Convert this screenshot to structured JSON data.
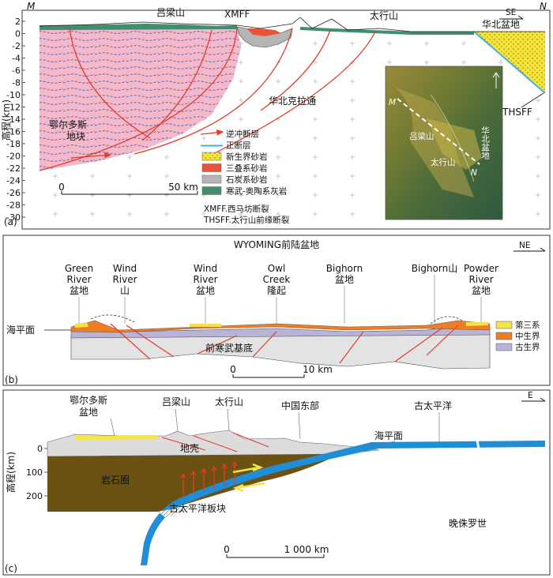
{
  "panel_a": {
    "letter": "(a)",
    "corner_left": "M",
    "corner_right": "N",
    "direction": "SE",
    "y_axis_label": "高程(km)",
    "y_ticks": [
      "2",
      "0",
      "-2",
      "-4",
      "-6",
      "-8",
      "-10",
      "-12",
      "-14",
      "-16",
      "-18",
      "-20",
      "-22",
      "-24",
      "-26",
      "-28",
      "-30"
    ],
    "labels": {
      "lvliang": "吕梁山",
      "xmff": "XMFF",
      "taihang": "太行山",
      "huabei_basin": "华北盆地",
      "craton": "华北克拉通",
      "ordos_1": "鄂尔多斯",
      "ordos_2": "地块",
      "thsff": "THSFF"
    },
    "scale": {
      "zero": "0",
      "end": "50 km"
    },
    "inset": {
      "m": "M",
      "n": "N",
      "lvliang": "吕梁山",
      "taihang": "太行山",
      "basin": "华北盆地"
    },
    "legend": [
      {
        "label": "逆冲断层",
        "color": "#e23b2a",
        "kind": "arrow-line"
      },
      {
        "label": "正断层",
        "color": "#46aee8",
        "kind": "double-line"
      },
      {
        "label": "新生界砂岩",
        "color": "#f5e43a",
        "kind": "dots"
      },
      {
        "label": "三叠系砂岩",
        "color": "#e5553a",
        "kind": "fill"
      },
      {
        "label": "石炭系砂岩",
        "color": "#b5b5b5",
        "kind": "fill"
      },
      {
        "label": "寒武-奥陶系灰岩",
        "color": "#3f8f6f",
        "kind": "fill"
      }
    ],
    "notes": [
      "XMFF.西马坊断裂",
      "THSFF.太行山前缘断裂"
    ]
  },
  "panel_b": {
    "letter": "(b)",
    "title": "WYOMING前陆盆地",
    "direction": "NE",
    "sea_level": "海平面",
    "basement": "前寒武基底",
    "features": [
      {
        "l1": "Green",
        "l2": "River",
        "l3": "盆地"
      },
      {
        "l1": "Wind",
        "l2": "River",
        "l3": "山"
      },
      {
        "l1": "Wind",
        "l2": "River",
        "l3": "盆地"
      },
      {
        "l1": "Owl",
        "l2": "Creek",
        "l3": "隆起"
      },
      {
        "l1": "Bighorn",
        "l2": "盆地"
      },
      {
        "l1": "Bighorn山"
      },
      {
        "l1": "Powder",
        "l2": "River",
        "l3": "盆地"
      }
    ],
    "legend": [
      {
        "label": "第三系",
        "color": "#f3e34a"
      },
      {
        "label": "中生界",
        "color": "#ef7d22"
      },
      {
        "label": "古生界",
        "color": "#b9b4d6"
      }
    ],
    "scale": {
      "zero": "0",
      "end": "10 km"
    }
  },
  "panel_c": {
    "letter": "(c)",
    "direction": "E",
    "y_axis_label": "高程(km)",
    "y_ticks": [
      "0",
      "100",
      "200"
    ],
    "labels": {
      "ordos_1": "鄂尔多斯",
      "ordos_2": "盆地",
      "lvliang": "吕梁山",
      "taihang": "太行山",
      "east_china": "中国东部",
      "pacific": "古太平洋",
      "sea_level": "海平面",
      "crust": "地壳",
      "lithosphere": "岩石圈",
      "plate": "古太平洋板块",
      "epoch": "晚侏罗世"
    },
    "scale": {
      "zero": "0",
      "end": "1 000 km"
    }
  }
}
